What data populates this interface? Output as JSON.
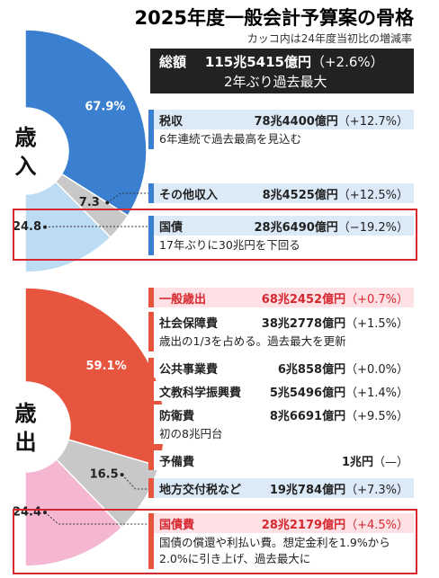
{
  "header": {
    "title": "2025年度一般会計予算案の骨格",
    "note": "カッコ内は24年度当初比の増減率"
  },
  "total": {
    "label": "総額",
    "amount": "115兆5415億円",
    "change": "（+2.6%）",
    "remark": "2年ぶり過去最大"
  },
  "chart_data": [
    {
      "type": "pie",
      "title": "歳入",
      "categories": [
        "税収",
        "その他収入",
        "国債"
      ],
      "values": [
        67.9,
        7.3,
        24.8
      ],
      "value_labels": [
        "67.9%",
        "7.3",
        "24.8"
      ],
      "colors": [
        "#3a7fd0",
        "#c8c8c8",
        "#bcdcf4"
      ]
    },
    {
      "type": "pie",
      "title": "歳出",
      "categories": [
        "一般歳出",
        "地方交付税など",
        "国債費"
      ],
      "values": [
        59.1,
        16.5,
        24.4
      ],
      "value_labels": [
        "59.1%",
        "16.5",
        "24.4"
      ],
      "colors": [
        "#e8553f",
        "#c8c8c8",
        "#f4b6d0"
      ]
    }
  ],
  "revenue_details": [
    {
      "amount": "78兆4400億円",
      "change": "（+12.7%）",
      "remark": "6年連続で過去最高を見込む"
    },
    {
      "amount": "8兆4525億円",
      "change": "（+12.5%）"
    },
    {
      "amount": "28兆6490億円",
      "change": "（−19.2%）",
      "remark": "17年ぶりに30兆円を下回る"
    }
  ],
  "expenditure_details": [
    {
      "amount": "68兆2452億円",
      "change": "（+0.7%）"
    },
    {
      "amount": "19兆784億円",
      "change": "（+7.3%）"
    },
    {
      "amount": "28兆2179億円",
      "change": "（+4.5%）",
      "remark": "国債の償還や利払い費。想定金利を1.9%から2.0%に引き上げ、過去最大に"
    }
  ],
  "general_items": [
    {
      "name": "社会保障費",
      "amount": "38兆2778億円",
      "change": "（+1.5%）",
      "remark": "歳出の1/3を占める。過去最大を更新"
    },
    {
      "name": "公共事業費",
      "amount": "6兆858億円",
      "change": "（+0.0%）"
    },
    {
      "name": "文教科学振興費",
      "amount": "5兆5496億円",
      "change": "（+1.4%）"
    },
    {
      "name": "防衛費",
      "amount": "8兆6691億円",
      "change": "（+9.5%）",
      "remark": "初の8兆円台"
    },
    {
      "name": "予備費",
      "amount": "1兆円",
      "change": "（—）"
    }
  ]
}
